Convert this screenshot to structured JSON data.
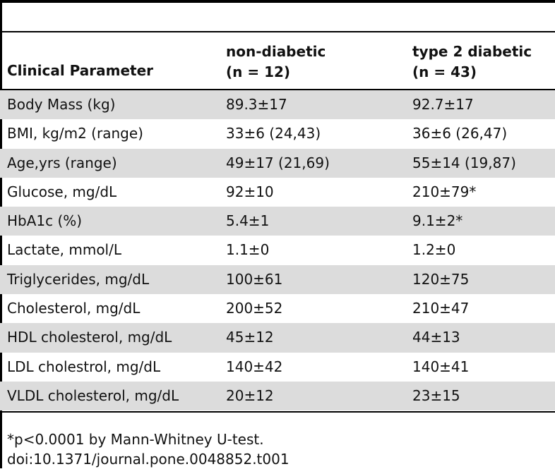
{
  "table": {
    "headers": {
      "parameter": "Clinical Parameter",
      "group1_line1": "non-diabetic",
      "group1_line2": "(n = 12)",
      "group2_line1": "type 2 diabetic",
      "group2_line2": "(n = 43)"
    },
    "rows": [
      {
        "parameter": "Body Mass (kg)",
        "non_diabetic": "89.3±17",
        "type2_diabetic": "92.7±17"
      },
      {
        "parameter": "BMI, kg/m2 (range)",
        "non_diabetic": "33±6 (24,43)",
        "type2_diabetic": "36±6 (26,47)"
      },
      {
        "parameter": "Age,yrs (range)",
        "non_diabetic": "49±17 (21,69)",
        "type2_diabetic": "55±14 (19,87)"
      },
      {
        "parameter": "Glucose, mg/dL",
        "non_diabetic": "92±10",
        "type2_diabetic": "210±79*"
      },
      {
        "parameter": "HbA1c (%)",
        "non_diabetic": "5.4±1",
        "type2_diabetic": "9.1±2*"
      },
      {
        "parameter": "Lactate, mmol/L",
        "non_diabetic": "1.1±0",
        "type2_diabetic": "1.2±0"
      },
      {
        "parameter": "Triglycerides, mg/dL",
        "non_diabetic": "100±61",
        "type2_diabetic": "120±75"
      },
      {
        "parameter": "Cholesterol, mg/dL",
        "non_diabetic": "200±52",
        "type2_diabetic": "210±47"
      },
      {
        "parameter": "HDL cholesterol, mg/dL",
        "non_diabetic": "45±12",
        "type2_diabetic": "44±13"
      },
      {
        "parameter": "LDL cholestrol, mg/dL",
        "non_diabetic": "140±42",
        "type2_diabetic": "140±41"
      },
      {
        "parameter": "VLDL cholesterol, mg/dL",
        "non_diabetic": "20±12",
        "type2_diabetic": "23±15"
      }
    ],
    "footnote": "*p<0.0001 by Mann-Whitney U-test.",
    "doi": "doi:10.1371/journal.pone.0048852.t001"
  }
}
